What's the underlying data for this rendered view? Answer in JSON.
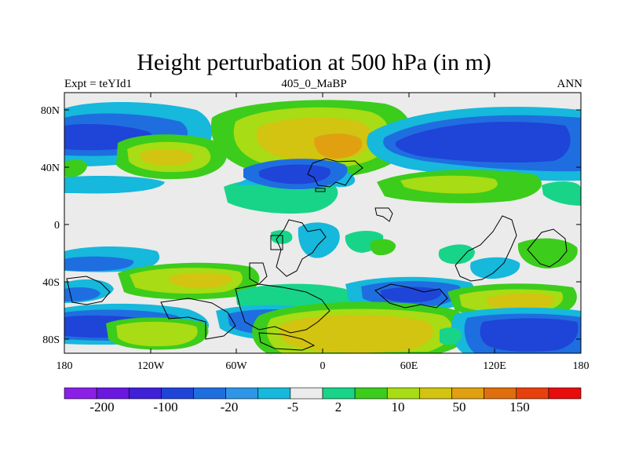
{
  "title": "Height perturbation at 500 hPa (in m)",
  "left_label": "Expt = teYId1",
  "center_label": "405_0_MaBP",
  "right_label": "ANN",
  "lat_ticks": [
    "80N",
    "40N",
    "0",
    "40S",
    "80S"
  ],
  "lon_ticks": [
    "180",
    "120W",
    "60W",
    "0",
    "60E",
    "120E",
    "180"
  ],
  "colorbar": {
    "colors": [
      "#8a20e8",
      "#6a18e0",
      "#3f1fd8",
      "#1f44d8",
      "#1f6ee0",
      "#2d96e6",
      "#16b8dc",
      "#ebebeb",
      "#17d489",
      "#3ccc1c",
      "#a8dc14",
      "#d2c410",
      "#e0a010",
      "#e06e0c",
      "#e8400c",
      "#e80c0c"
    ],
    "labels": [
      "-200",
      "-100",
      "-20",
      "-5",
      "2",
      "10",
      "50",
      "150"
    ]
  }
}
